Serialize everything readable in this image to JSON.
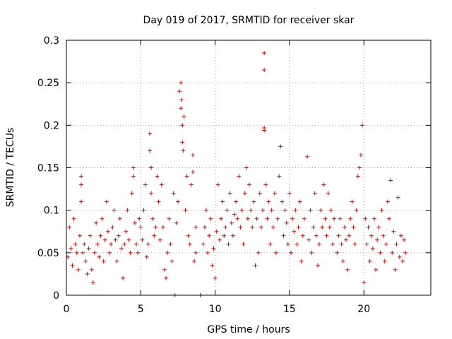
{
  "chart_data": {
    "type": "scatter",
    "title": "Day 019 of 2017, SRMTID for receiver skar",
    "xlabel": "GPS time / hours",
    "ylabel": "SRMTID / TECUs",
    "xlim": [
      0,
      24.5
    ],
    "ylim": [
      0,
      0.3
    ],
    "x_ticks": [
      0,
      5,
      10,
      15,
      20
    ],
    "x_tick_labels": [
      "0",
      "5",
      "10",
      "15",
      "20"
    ],
    "y_ticks": [
      0,
      0.05,
      0.1,
      0.15,
      0.2,
      0.25,
      0.3
    ],
    "y_tick_labels": [
      "0",
      "0.05",
      "0.1",
      "0.15",
      "0.2",
      "0.25",
      "0.3"
    ],
    "grid": true,
    "marker": "+",
    "color": "#e00000",
    "series": [
      {
        "name": "SRMTID",
        "points": [
          [
            0.1,
            0.045
          ],
          [
            0.2,
            0.08
          ],
          [
            0.3,
            0.055
          ],
          [
            0.4,
            0.035
          ],
          [
            0.5,
            0.09
          ],
          [
            0.6,
            0.06
          ],
          [
            0.7,
            0.05
          ],
          [
            0.8,
            0.03
          ],
          [
            0.9,
            0.07
          ],
          [
            1.0,
            0.14
          ],
          [
            1.0,
            0.13
          ],
          [
            1.0,
            0.11
          ],
          [
            1.1,
            0.05
          ],
          [
            1.2,
            0.06
          ],
          [
            1.3,
            0.04
          ],
          [
            1.4,
            0.025
          ],
          [
            1.5,
            0.055
          ],
          [
            1.6,
            0.07
          ],
          [
            1.7,
            0.03
          ],
          [
            1.8,
            0.015
          ],
          [
            1.9,
            0.05
          ],
          [
            2.0,
            0.085
          ],
          [
            2.1,
            0.06
          ],
          [
            2.2,
            0.045
          ],
          [
            2.3,
            0.07
          ],
          [
            2.4,
            0.09
          ],
          [
            2.5,
            0.04
          ],
          [
            2.6,
            0.065
          ],
          [
            2.7,
            0.11
          ],
          [
            2.8,
            0.075
          ],
          [
            2.9,
            0.05
          ],
          [
            3.0,
            0.06
          ],
          [
            3.1,
            0.08
          ],
          [
            3.2,
            0.1
          ],
          [
            3.3,
            0.065
          ],
          [
            3.4,
            0.04
          ],
          [
            3.5,
            0.07
          ],
          [
            3.6,
            0.09
          ],
          [
            3.7,
            0.055
          ],
          [
            3.8,
            0.02
          ],
          [
            3.9,
            0.06
          ],
          [
            4.0,
            0.075
          ],
          [
            4.1,
            0.1
          ],
          [
            4.2,
            0.065
          ],
          [
            4.3,
            0.05
          ],
          [
            4.4,
            0.12
          ],
          [
            4.5,
            0.14
          ],
          [
            4.5,
            0.15
          ],
          [
            4.6,
            0.085
          ],
          [
            4.7,
            0.06
          ],
          [
            4.8,
            0.05
          ],
          [
            4.9,
            0.09
          ],
          [
            5.0,
            0.08
          ],
          [
            5.1,
            0.065
          ],
          [
            5.2,
            0.1
          ],
          [
            5.3,
            0.13
          ],
          [
            5.4,
            0.045
          ],
          [
            5.5,
            0.06
          ],
          [
            5.6,
            0.19
          ],
          [
            5.6,
            0.17
          ],
          [
            5.7,
            0.15
          ],
          [
            5.7,
            0.12
          ],
          [
            5.8,
            0.09
          ],
          [
            5.9,
            0.07
          ],
          [
            6.0,
            0.08
          ],
          [
            6.1,
            0.14
          ],
          [
            6.2,
            0.11
          ],
          [
            6.3,
            0.065
          ],
          [
            6.4,
            0.13
          ],
          [
            6.5,
            0.08
          ],
          [
            6.6,
            0.03
          ],
          [
            6.7,
            0.02
          ],
          [
            6.8,
            0.05
          ],
          [
            6.9,
            0.09
          ],
          [
            7.0,
            0.06
          ],
          [
            7.1,
            0.04
          ],
          [
            7.2,
            0.12
          ],
          [
            7.3,
            0.0
          ],
          [
            7.4,
            0.085
          ],
          [
            7.5,
            0.11
          ],
          [
            7.6,
            0.24
          ],
          [
            7.7,
            0.25
          ],
          [
            7.7,
            0.22
          ],
          [
            7.75,
            0.23
          ],
          [
            7.8,
            0.18
          ],
          [
            7.8,
            0.2
          ],
          [
            7.85,
            0.17
          ],
          [
            7.9,
            0.21
          ],
          [
            8.0,
            0.1
          ],
          [
            8.1,
            0.14
          ],
          [
            8.2,
            0.07
          ],
          [
            8.3,
            0.06
          ],
          [
            8.4,
            0.13
          ],
          [
            8.5,
            0.165
          ],
          [
            8.5,
            0.145
          ],
          [
            8.6,
            0.04
          ],
          [
            8.7,
            0.08
          ],
          [
            8.7,
            0.05
          ],
          [
            9.0,
            0.0
          ],
          [
            9.2,
            0.06
          ],
          [
            9.3,
            0.08
          ],
          [
            9.4,
            0.1
          ],
          [
            9.5,
            0.05
          ],
          [
            9.6,
            0.07
          ],
          [
            9.7,
            0.09
          ],
          [
            9.8,
            0.035
          ],
          [
            9.9,
            0.055
          ],
          [
            10.0,
            0.02
          ],
          [
            10.1,
            0.075
          ],
          [
            10.2,
            0.13
          ],
          [
            10.3,
            0.065
          ],
          [
            10.4,
            0.09
          ],
          [
            10.5,
            0.11
          ],
          [
            10.6,
            0.07
          ],
          [
            10.7,
            0.08
          ],
          [
            10.8,
            0.1
          ],
          [
            10.9,
            0.06
          ],
          [
            11.0,
            0.12
          ],
          [
            11.1,
            0.085
          ],
          [
            11.2,
            0.07
          ],
          [
            11.3,
            0.095
          ],
          [
            11.4,
            0.11
          ],
          [
            11.5,
            0.09
          ],
          [
            11.6,
            0.14
          ],
          [
            11.7,
            0.08
          ],
          [
            11.8,
            0.1
          ],
          [
            11.9,
            0.06
          ],
          [
            12.0,
            0.12
          ],
          [
            12.1,
            0.15
          ],
          [
            12.2,
            0.09
          ],
          [
            12.3,
            0.13
          ],
          [
            12.4,
            0.1
          ],
          [
            12.5,
            0.08
          ],
          [
            12.6,
            0.11
          ],
          [
            12.7,
            0.035
          ],
          [
            12.8,
            0.09
          ],
          [
            12.9,
            0.05
          ],
          [
            13.0,
            0.12
          ],
          [
            13.1,
            0.08
          ],
          [
            13.2,
            0.1
          ],
          [
            13.3,
            0.285
          ],
          [
            13.3,
            0.265
          ],
          [
            13.3,
            0.197
          ],
          [
            13.3,
            0.194
          ],
          [
            13.4,
            0.13
          ],
          [
            13.5,
            0.09
          ],
          [
            13.6,
            0.11
          ],
          [
            13.7,
            0.06
          ],
          [
            13.8,
            0.1
          ],
          [
            13.9,
            0.08
          ],
          [
            14.0,
            0.12
          ],
          [
            14.1,
            0.05
          ],
          [
            14.2,
            0.09
          ],
          [
            14.3,
            0.14
          ],
          [
            14.4,
            0.175
          ],
          [
            14.5,
            0.11
          ],
          [
            14.6,
            0.07
          ],
          [
            14.7,
            0.1
          ],
          [
            14.8,
            0.085
          ],
          [
            14.9,
            0.06
          ],
          [
            15.0,
            0.12
          ],
          [
            15.1,
            0.05
          ],
          [
            15.2,
            0.09
          ],
          [
            15.3,
            0.075
          ],
          [
            15.4,
            0.1
          ],
          [
            15.5,
            0.06
          ],
          [
            15.6,
            0.08
          ],
          [
            15.7,
            0.11
          ],
          [
            15.8,
            0.04
          ],
          [
            15.9,
            0.07
          ],
          [
            16.0,
            0.09
          ],
          [
            16.2,
            0.163
          ],
          [
            16.3,
            0.065
          ],
          [
            16.4,
            0.1
          ],
          [
            16.5,
            0.05
          ],
          [
            16.6,
            0.08
          ],
          [
            16.7,
            0.12
          ],
          [
            16.8,
            0.07
          ],
          [
            16.9,
            0.035
          ],
          [
            17.0,
            0.06
          ],
          [
            17.1,
            0.1
          ],
          [
            17.2,
            0.08
          ],
          [
            17.3,
            0.13
          ],
          [
            17.4,
            0.09
          ],
          [
            17.5,
            0.07
          ],
          [
            17.6,
            0.12
          ],
          [
            17.7,
            0.08
          ],
          [
            17.8,
            0.1
          ],
          [
            17.9,
            0.06
          ],
          [
            18.0,
            0.09
          ],
          [
            18.2,
            0.05
          ],
          [
            18.3,
            0.07
          ],
          [
            18.4,
            0.09
          ],
          [
            18.5,
            0.06
          ],
          [
            18.6,
            0.04
          ],
          [
            18.7,
            0.08
          ],
          [
            18.8,
            0.065
          ],
          [
            18.9,
            0.03
          ],
          [
            19.0,
            0.07
          ],
          [
            19.1,
            0.09
          ],
          [
            19.2,
            0.11
          ],
          [
            19.3,
            0.08
          ],
          [
            19.4,
            0.06
          ],
          [
            19.5,
            0.1
          ],
          [
            19.6,
            0.14
          ],
          [
            19.7,
            0.15
          ],
          [
            19.8,
            0.165
          ],
          [
            19.9,
            0.2
          ],
          [
            20.0,
            0.015
          ],
          [
            20.1,
            0.09
          ],
          [
            20.2,
            0.06
          ],
          [
            20.3,
            0.08
          ],
          [
            20.4,
            0.04
          ],
          [
            20.5,
            0.07
          ],
          [
            20.6,
            0.055
          ],
          [
            20.7,
            0.09
          ],
          [
            20.8,
            0.03
          ],
          [
            20.9,
            0.065
          ],
          [
            21.0,
            0.08
          ],
          [
            21.1,
            0.05
          ],
          [
            21.2,
            0.1
          ],
          [
            21.3,
            0.07
          ],
          [
            21.4,
            0.04
          ],
          [
            21.5,
            0.06
          ],
          [
            21.6,
            0.11
          ],
          [
            21.7,
            0.09
          ],
          [
            21.8,
            0.135
          ],
          [
            21.9,
            0.05
          ],
          [
            22.0,
            0.075
          ],
          [
            22.1,
            0.03
          ],
          [
            22.2,
            0.06
          ],
          [
            22.3,
            0.115
          ],
          [
            22.4,
            0.045
          ],
          [
            22.5,
            0.07
          ],
          [
            22.6,
            0.04
          ],
          [
            22.7,
            0.065
          ],
          [
            22.8,
            0.05
          ]
        ]
      }
    ]
  }
}
